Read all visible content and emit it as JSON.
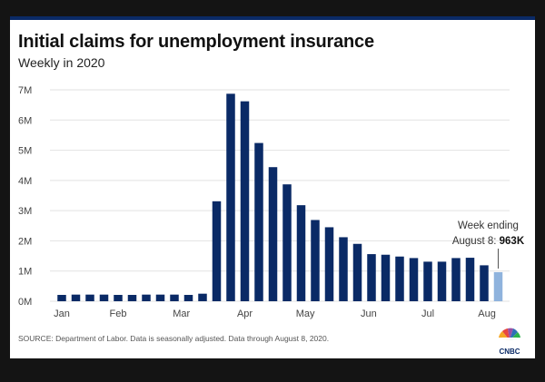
{
  "title": "Initial claims for unemployment insurance",
  "subtitle": "Weekly in 2020",
  "source": "SOURCE: Department of Labor. Data is seasonally adjusted. Data through August 8, 2020.",
  "logo_text": "CNBC",
  "annotation": {
    "line1": "Week ending",
    "line2_prefix": "August 8: ",
    "line2_value": "963K"
  },
  "colors": {
    "bar": "#0a2a66",
    "highlight": "#8fb3dd",
    "grid": "#e2e2e2",
    "top_rule": "#0a2a66"
  },
  "chart_data": {
    "type": "bar",
    "title": "Initial claims for unemployment insurance",
    "subtitle": "Weekly in 2020",
    "xlabel": "",
    "ylabel": "",
    "ylim": [
      0,
      7000000
    ],
    "y_ticks": [
      {
        "value": 0,
        "label": "0M"
      },
      {
        "value": 1000000,
        "label": "1M"
      },
      {
        "value": 2000000,
        "label": "2M"
      },
      {
        "value": 3000000,
        "label": "3M"
      },
      {
        "value": 4000000,
        "label": "4M"
      },
      {
        "value": 5000000,
        "label": "5M"
      },
      {
        "value": 6000000,
        "label": "6M"
      },
      {
        "value": 7000000,
        "label": "7M"
      }
    ],
    "x_ticks": [
      {
        "label": "Jan",
        "week_index": 0
      },
      {
        "label": "Feb",
        "week_index": 4
      },
      {
        "label": "Mar",
        "week_index": 8.5
      },
      {
        "label": "Apr",
        "week_index": 13
      },
      {
        "label": "May",
        "week_index": 17.3
      },
      {
        "label": "Jun",
        "week_index": 21.8
      },
      {
        "label": "Jul",
        "week_index": 26
      },
      {
        "label": "Aug",
        "week_index": 30.2
      }
    ],
    "grid": true,
    "values": [
      210000,
      220000,
      220000,
      220000,
      210000,
      210000,
      220000,
      220000,
      220000,
      210000,
      250000,
      3310000,
      6870000,
      6620000,
      5240000,
      4440000,
      3870000,
      3180000,
      2690000,
      2450000,
      2120000,
      1900000,
      1560000,
      1540000,
      1480000,
      1430000,
      1310000,
      1310000,
      1430000,
      1440000,
      1190000,
      963000
    ],
    "highlight_index": 31
  }
}
